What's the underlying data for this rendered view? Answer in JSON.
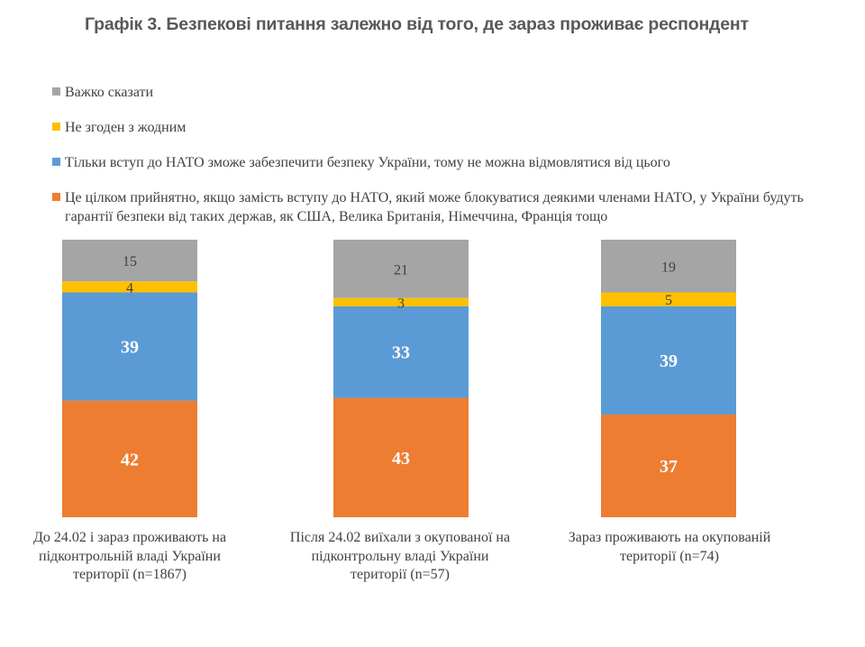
{
  "chart_data": {
    "type": "bar",
    "stacked": true,
    "title": "Графік 3. Безпекові питання залежно від того, де зараз проживає респондент",
    "xlabel": "",
    "ylabel": "",
    "ylim": [
      0,
      100
    ],
    "grid": false,
    "legend_position": "top",
    "categories": [
      "До 24.02 і зараз проживають на підконтрольній владі України території (n=1867)",
      "Після 24.02 виїхали з окупованої на підконтрольну владі України території (n=57)",
      "Зараз проживають на окупованій території (n=74)"
    ],
    "series": [
      {
        "name": "Це цілком прийнятно, якщо замість вступу до НАТО, який може блокуватися деякими членами НАТО, у України будуть гарантії безпеки від таких держав, як США, Велика Британія, Німеччина, Франція тощо",
        "color": "#ED7D31",
        "label_color": "#ffffff",
        "label_bold": true,
        "values": [
          42,
          43,
          37
        ]
      },
      {
        "name": "Тільки вступ до НАТО зможе забезпечити безпеку України, тому не можна відмовлятися від цього",
        "color": "#5B9BD5",
        "label_color": "#ffffff",
        "label_bold": true,
        "values": [
          39,
          33,
          39
        ]
      },
      {
        "name": "Не згоден з жодним",
        "color": "#FFC000",
        "label_color": "#404040",
        "label_bold": false,
        "values": [
          4,
          3,
          5
        ]
      },
      {
        "name": "Важко сказати",
        "color": "#A5A5A5",
        "label_color": "#404040",
        "label_bold": false,
        "values": [
          15,
          21,
          19
        ]
      }
    ]
  },
  "legend": [
    {
      "label": "Важко сказати",
      "color": "#A5A5A5"
    },
    {
      "label": "Не згоден з жодним",
      "color": "#FFC000"
    },
    {
      "label": "Тільки вступ до НАТО зможе забезпечити безпеку України, тому не можна відмовлятися від цього",
      "color": "#5B9BD5"
    },
    {
      "label": "Це цілком прийнятно, якщо замість вступу до НАТО, який може блокуватися деякими членами НАТО, у України будуть гарантії безпеки від таких держав, як США, Велика Британія, Німеччина, Франція тощо",
      "color": "#ED7D31"
    }
  ],
  "category_labels": [
    [
      "До 24.02 і зараз проживають на",
      "підконтрольній владі України",
      "території (n=1867)"
    ],
    [
      "Після 24.02 виїхали з окупованої на",
      "підконтрольну владі України",
      "території (n=57)"
    ],
    [
      "Зараз проживають на окупованій",
      "території (n=74)"
    ]
  ]
}
